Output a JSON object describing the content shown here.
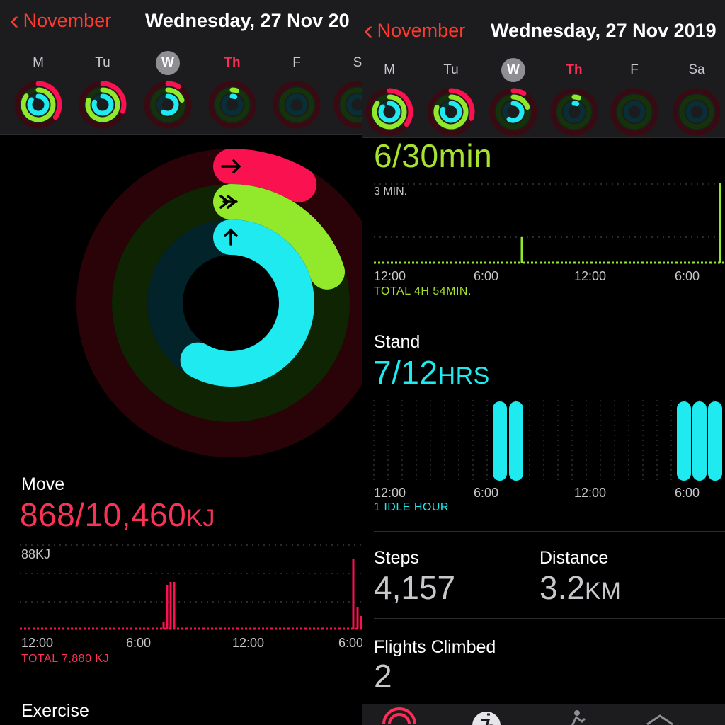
{
  "left": {
    "header": {
      "back_label": "November",
      "date_title": "Wednesday, 27 Nov 20"
    },
    "weekdays": [
      "M",
      "Tu",
      "W",
      "Th",
      "F",
      "S"
    ],
    "move": {
      "title": "Move",
      "value": "868/10,460",
      "unit": "KJ",
      "scale_label": "88KJ",
      "x_labels": [
        "12:00",
        "6:00",
        "12:00",
        "6:00"
      ],
      "total": "TOTAL 7,880 KJ",
      "color": "#fa114f"
    },
    "exercise_title": "Exercise"
  },
  "right": {
    "header": {
      "back_label": "November",
      "date_title": "Wednesday, 27 Nov 2019"
    },
    "weekdays": [
      "M",
      "Tu",
      "W",
      "Th",
      "F",
      "Sa"
    ],
    "exercise": {
      "value": "6/30",
      "unit": "min",
      "scale_label": "3 MIN.",
      "x_labels": [
        "12:00",
        "6:00",
        "12:00",
        "6:00"
      ],
      "total": "TOTAL 4H 54MIN.",
      "color": "#92e82a"
    },
    "stand": {
      "title": "Stand",
      "value": "7/12",
      "unit": "HRS",
      "x_labels": [
        "12:00",
        "6:00",
        "12:00",
        "6:00"
      ],
      "idle": "1 IDLE HOUR",
      "color": "#1eeaef"
    },
    "steps": {
      "title": "Steps",
      "value": "4,157"
    },
    "distance": {
      "title": "Distance",
      "value": "3.2",
      "unit": "KM"
    },
    "flights": {
      "title": "Flights Climbed",
      "value": "2"
    }
  },
  "rings": {
    "move_fraction": 0.083,
    "exercise_fraction": 0.2,
    "stand_fraction": 0.583,
    "move_color": "#fa114f",
    "exercise_color": "#92e82a",
    "stand_color": "#1eeaef"
  },
  "week_rings": {
    "move": [
      0.35,
      0.3,
      0.083,
      0,
      0,
      0
    ],
    "exercise": [
      0.85,
      0.8,
      0.2,
      0.05,
      0,
      0
    ],
    "stand": [
      0.85,
      0.8,
      0.583,
      0.05,
      0,
      0
    ]
  },
  "chart_data": [
    {
      "type": "bar",
      "title": "Move",
      "ylabel": "88KJ",
      "x_tick_labels": [
        "12:00",
        "6:00",
        "12:00",
        "6:00"
      ],
      "total": "TOTAL 7,880 KJ"
    },
    {
      "type": "bar",
      "title": "Exercise",
      "ylabel": "3 MIN.",
      "x_tick_labels": [
        "12:00",
        "6:00",
        "12:00",
        "6:00"
      ],
      "total": "TOTAL 4H 54MIN."
    },
    {
      "type": "bar",
      "title": "Stand",
      "x_tick_labels": [
        "12:00",
        "6:00",
        "12:00",
        "6:00"
      ],
      "idle": "1 IDLE HOUR"
    }
  ]
}
